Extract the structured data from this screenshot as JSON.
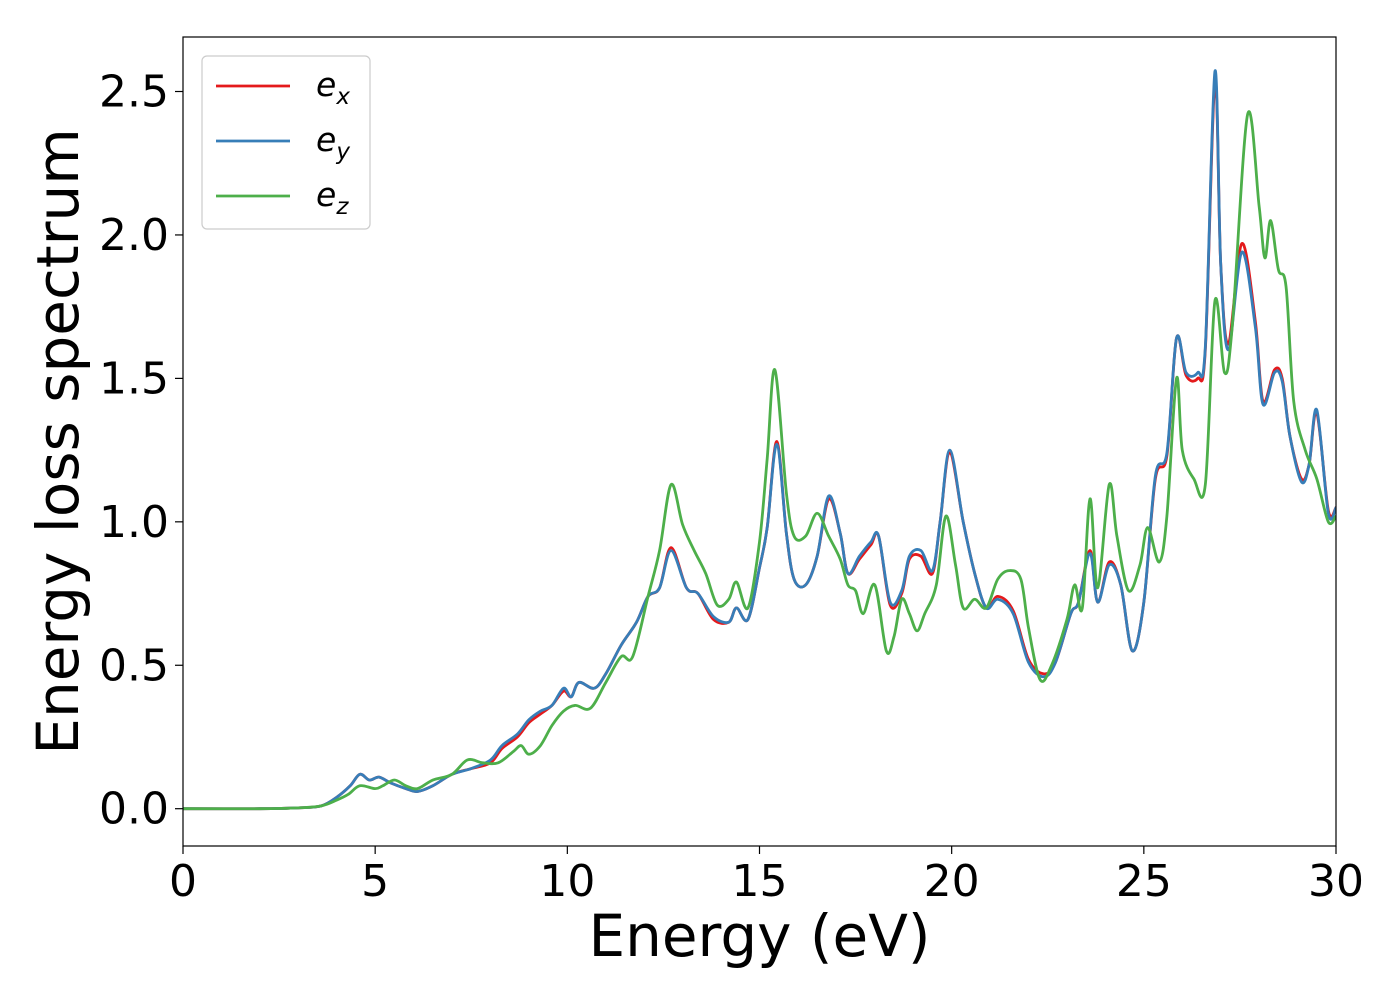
{
  "chart_data": {
    "type": "line",
    "xlabel": "Energy (eV)",
    "ylabel": "Energy loss spectrum",
    "xlim": [
      0,
      30
    ],
    "ylim": [
      -0.13,
      2.69
    ],
    "xticks": [
      0,
      5,
      10,
      15,
      20,
      25,
      30
    ],
    "xtick_labels": [
      "0",
      "5",
      "10",
      "15",
      "20",
      "25",
      "30"
    ],
    "yticks": [
      0.0,
      0.5,
      1.0,
      1.5,
      2.0,
      2.5
    ],
    "ytick_labels": [
      "0.0",
      "0.5",
      "1.0",
      "1.5",
      "2.0",
      "2.5"
    ],
    "grid": false,
    "legend_position": "upper-left",
    "series": [
      {
        "name_base": "e",
        "name_sub": "x",
        "color": "#e41a1c",
        "points": [
          [
            0,
            0
          ],
          [
            2,
            0
          ],
          [
            3,
            0.003
          ],
          [
            3.6,
            0.01
          ],
          [
            4,
            0.04
          ],
          [
            4.35,
            0.08
          ],
          [
            4.6,
            0.12
          ],
          [
            4.85,
            0.1
          ],
          [
            5.1,
            0.11
          ],
          [
            5.4,
            0.09
          ],
          [
            5.8,
            0.07
          ],
          [
            6.1,
            0.06
          ],
          [
            6.5,
            0.08
          ],
          [
            7,
            0.12
          ],
          [
            7.5,
            0.14
          ],
          [
            8,
            0.16
          ],
          [
            8.3,
            0.21
          ],
          [
            8.7,
            0.25
          ],
          [
            9,
            0.3
          ],
          [
            9.3,
            0.33
          ],
          [
            9.6,
            0.36
          ],
          [
            9.9,
            0.41
          ],
          [
            10.1,
            0.39
          ],
          [
            10.3,
            0.44
          ],
          [
            10.7,
            0.42
          ],
          [
            11,
            0.47
          ],
          [
            11.4,
            0.57
          ],
          [
            11.8,
            0.65
          ],
          [
            12.1,
            0.74
          ],
          [
            12.4,
            0.77
          ],
          [
            12.7,
            0.91
          ],
          [
            13.1,
            0.77
          ],
          [
            13.4,
            0.75
          ],
          [
            13.8,
            0.66
          ],
          [
            14.2,
            0.65
          ],
          [
            14.4,
            0.7
          ],
          [
            14.7,
            0.66
          ],
          [
            15,
            0.84
          ],
          [
            15.2,
            0.98
          ],
          [
            15.45,
            1.28
          ],
          [
            15.7,
            0.96
          ],
          [
            15.9,
            0.8
          ],
          [
            16.2,
            0.78
          ],
          [
            16.5,
            0.88
          ],
          [
            16.8,
            1.08
          ],
          [
            17.1,
            0.96
          ],
          [
            17.3,
            0.82
          ],
          [
            17.6,
            0.87
          ],
          [
            17.9,
            0.92
          ],
          [
            18.1,
            0.95
          ],
          [
            18.4,
            0.71
          ],
          [
            18.7,
            0.75
          ],
          [
            18.9,
            0.87
          ],
          [
            19.2,
            0.88
          ],
          [
            19.5,
            0.82
          ],
          [
            19.7,
            1.0
          ],
          [
            19.95,
            1.24
          ],
          [
            20.3,
            1.0
          ],
          [
            20.6,
            0.82
          ],
          [
            20.9,
            0.7
          ],
          [
            21.2,
            0.74
          ],
          [
            21.6,
            0.69
          ],
          [
            22,
            0.52
          ],
          [
            22.4,
            0.47
          ],
          [
            22.7,
            0.51
          ],
          [
            23.1,
            0.68
          ],
          [
            23.3,
            0.72
          ],
          [
            23.6,
            0.9
          ],
          [
            23.8,
            0.72
          ],
          [
            24.1,
            0.86
          ],
          [
            24.4,
            0.78
          ],
          [
            24.7,
            0.55
          ],
          [
            25,
            0.72
          ],
          [
            25.3,
            1.15
          ],
          [
            25.6,
            1.23
          ],
          [
            25.85,
            1.64
          ],
          [
            26.1,
            1.51
          ],
          [
            26.4,
            1.5
          ],
          [
            26.6,
            1.6
          ],
          [
            26.85,
            2.54
          ],
          [
            27,
            1.9
          ],
          [
            27.2,
            1.62
          ],
          [
            27.55,
            1.97
          ],
          [
            27.9,
            1.7
          ],
          [
            28.1,
            1.42
          ],
          [
            28.4,
            1.53
          ],
          [
            28.6,
            1.5
          ],
          [
            28.8,
            1.3
          ],
          [
            29.1,
            1.15
          ],
          [
            29.3,
            1.2
          ],
          [
            29.5,
            1.38
          ],
          [
            29.8,
            1.04
          ],
          [
            30,
            1.05
          ]
        ]
      },
      {
        "name_base": "e",
        "name_sub": "y",
        "color": "#377eb8",
        "points": [
          [
            0,
            0
          ],
          [
            2,
            0
          ],
          [
            3,
            0.003
          ],
          [
            3.6,
            0.01
          ],
          [
            4,
            0.04
          ],
          [
            4.35,
            0.08
          ],
          [
            4.6,
            0.12
          ],
          [
            4.85,
            0.1
          ],
          [
            5.1,
            0.11
          ],
          [
            5.4,
            0.09
          ],
          [
            5.8,
            0.07
          ],
          [
            6.1,
            0.06
          ],
          [
            6.5,
            0.08
          ],
          [
            7,
            0.12
          ],
          [
            7.5,
            0.14
          ],
          [
            8,
            0.17
          ],
          [
            8.3,
            0.22
          ],
          [
            8.7,
            0.26
          ],
          [
            9,
            0.31
          ],
          [
            9.3,
            0.34
          ],
          [
            9.6,
            0.36
          ],
          [
            9.9,
            0.42
          ],
          [
            10.1,
            0.39
          ],
          [
            10.3,
            0.44
          ],
          [
            10.7,
            0.42
          ],
          [
            11,
            0.47
          ],
          [
            11.4,
            0.57
          ],
          [
            11.8,
            0.65
          ],
          [
            12.1,
            0.74
          ],
          [
            12.4,
            0.77
          ],
          [
            12.7,
            0.9
          ],
          [
            13.1,
            0.77
          ],
          [
            13.4,
            0.75
          ],
          [
            13.8,
            0.67
          ],
          [
            14.2,
            0.65
          ],
          [
            14.4,
            0.7
          ],
          [
            14.7,
            0.66
          ],
          [
            15,
            0.84
          ],
          [
            15.2,
            0.98
          ],
          [
            15.45,
            1.27
          ],
          [
            15.7,
            0.96
          ],
          [
            15.9,
            0.8
          ],
          [
            16.2,
            0.78
          ],
          [
            16.5,
            0.88
          ],
          [
            16.8,
            1.09
          ],
          [
            17.1,
            0.96
          ],
          [
            17.3,
            0.82
          ],
          [
            17.6,
            0.88
          ],
          [
            17.9,
            0.93
          ],
          [
            18.1,
            0.95
          ],
          [
            18.4,
            0.72
          ],
          [
            18.7,
            0.76
          ],
          [
            18.9,
            0.88
          ],
          [
            19.2,
            0.9
          ],
          [
            19.5,
            0.83
          ],
          [
            19.7,
            1.0
          ],
          [
            19.95,
            1.25
          ],
          [
            20.3,
            1.0
          ],
          [
            20.6,
            0.82
          ],
          [
            20.9,
            0.7
          ],
          [
            21.2,
            0.73
          ],
          [
            21.6,
            0.68
          ],
          [
            22,
            0.51
          ],
          [
            22.4,
            0.46
          ],
          [
            22.7,
            0.51
          ],
          [
            23.1,
            0.68
          ],
          [
            23.3,
            0.72
          ],
          [
            23.6,
            0.89
          ],
          [
            23.8,
            0.72
          ],
          [
            24.1,
            0.85
          ],
          [
            24.4,
            0.78
          ],
          [
            24.7,
            0.55
          ],
          [
            25,
            0.72
          ],
          [
            25.3,
            1.16
          ],
          [
            25.6,
            1.24
          ],
          [
            25.85,
            1.64
          ],
          [
            26.1,
            1.52
          ],
          [
            26.4,
            1.52
          ],
          [
            26.6,
            1.61
          ],
          [
            26.85,
            2.57
          ],
          [
            27,
            1.9
          ],
          [
            27.2,
            1.6
          ],
          [
            27.55,
            1.94
          ],
          [
            27.9,
            1.68
          ],
          [
            28.1,
            1.41
          ],
          [
            28.4,
            1.52
          ],
          [
            28.6,
            1.49
          ],
          [
            28.8,
            1.3
          ],
          [
            29.1,
            1.14
          ],
          [
            29.3,
            1.2
          ],
          [
            29.5,
            1.39
          ],
          [
            29.8,
            1.03
          ],
          [
            30,
            1.05
          ]
        ]
      },
      {
        "name_base": "e",
        "name_sub": "z",
        "color": "#4daf4a",
        "points": [
          [
            0,
            0
          ],
          [
            2,
            0
          ],
          [
            3,
            0.003
          ],
          [
            3.6,
            0.01
          ],
          [
            4,
            0.03
          ],
          [
            4.3,
            0.05
          ],
          [
            4.6,
            0.08
          ],
          [
            5,
            0.07
          ],
          [
            5.2,
            0.08
          ],
          [
            5.5,
            0.1
          ],
          [
            5.8,
            0.08
          ],
          [
            6.1,
            0.07
          ],
          [
            6.5,
            0.1
          ],
          [
            7,
            0.12
          ],
          [
            7.4,
            0.17
          ],
          [
            7.8,
            0.16
          ],
          [
            8.2,
            0.16
          ],
          [
            8.6,
            0.2
          ],
          [
            8.8,
            0.22
          ],
          [
            9,
            0.19
          ],
          [
            9.3,
            0.22
          ],
          [
            9.6,
            0.29
          ],
          [
            9.9,
            0.34
          ],
          [
            10.2,
            0.36
          ],
          [
            10.6,
            0.35
          ],
          [
            11,
            0.44
          ],
          [
            11.4,
            0.53
          ],
          [
            11.7,
            0.53
          ],
          [
            12.1,
            0.74
          ],
          [
            12.4,
            0.9
          ],
          [
            12.7,
            1.13
          ],
          [
            13,
            0.99
          ],
          [
            13.3,
            0.9
          ],
          [
            13.6,
            0.82
          ],
          [
            13.9,
            0.71
          ],
          [
            14.2,
            0.73
          ],
          [
            14.4,
            0.79
          ],
          [
            14.7,
            0.7
          ],
          [
            15,
            0.93
          ],
          [
            15.2,
            1.22
          ],
          [
            15.4,
            1.53
          ],
          [
            15.7,
            1.1
          ],
          [
            15.9,
            0.95
          ],
          [
            16.2,
            0.95
          ],
          [
            16.5,
            1.03
          ],
          [
            16.8,
            0.95
          ],
          [
            17.1,
            0.87
          ],
          [
            17.3,
            0.78
          ],
          [
            17.5,
            0.76
          ],
          [
            17.7,
            0.68
          ],
          [
            18,
            0.78
          ],
          [
            18.3,
            0.55
          ],
          [
            18.5,
            0.6
          ],
          [
            18.7,
            0.73
          ],
          [
            18.9,
            0.68
          ],
          [
            19.1,
            0.62
          ],
          [
            19.3,
            0.68
          ],
          [
            19.6,
            0.78
          ],
          [
            19.85,
            1.02
          ],
          [
            20.1,
            0.85
          ],
          [
            20.3,
            0.7
          ],
          [
            20.6,
            0.73
          ],
          [
            20.9,
            0.7
          ],
          [
            21.2,
            0.8
          ],
          [
            21.5,
            0.83
          ],
          [
            21.8,
            0.8
          ],
          [
            22,
            0.63
          ],
          [
            22.3,
            0.45
          ],
          [
            22.6,
            0.5
          ],
          [
            23,
            0.66
          ],
          [
            23.2,
            0.78
          ],
          [
            23.4,
            0.7
          ],
          [
            23.6,
            1.08
          ],
          [
            23.8,
            0.77
          ],
          [
            24.1,
            1.13
          ],
          [
            24.3,
            0.95
          ],
          [
            24.6,
            0.76
          ],
          [
            24.9,
            0.85
          ],
          [
            25.1,
            0.98
          ],
          [
            25.4,
            0.86
          ],
          [
            25.6,
            1.02
          ],
          [
            25.85,
            1.5
          ],
          [
            26,
            1.25
          ],
          [
            26.3,
            1.15
          ],
          [
            26.6,
            1.13
          ],
          [
            26.85,
            1.77
          ],
          [
            27.1,
            1.52
          ],
          [
            27.3,
            1.68
          ],
          [
            27.7,
            2.42
          ],
          [
            28,
            2.1
          ],
          [
            28.15,
            1.92
          ],
          [
            28.3,
            2.05
          ],
          [
            28.5,
            1.88
          ],
          [
            28.7,
            1.82
          ],
          [
            28.9,
            1.42
          ],
          [
            29.2,
            1.25
          ],
          [
            29.5,
            1.15
          ],
          [
            29.8,
            1.0
          ],
          [
            30,
            1.02
          ]
        ]
      }
    ]
  }
}
